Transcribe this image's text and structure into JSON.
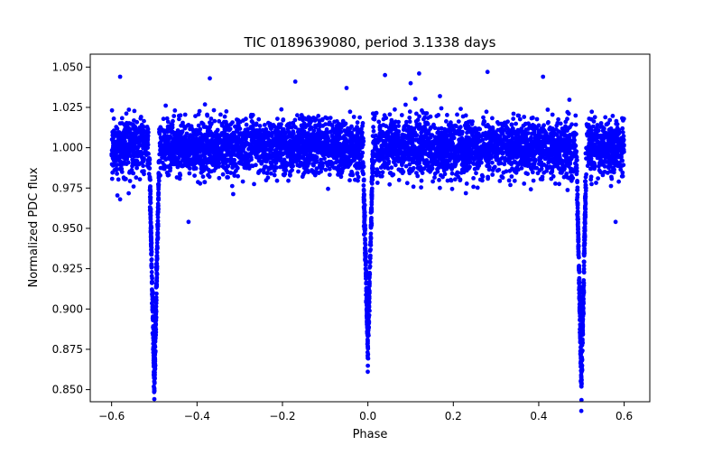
{
  "chart_data": {
    "type": "scatter",
    "title": "TIC 0189639080, period 3.1338 days",
    "xlabel": "Phase",
    "ylabel": "Normalized PDC flux",
    "xlim": [
      -0.65,
      0.66
    ],
    "ylim": [
      0.8425,
      1.058
    ],
    "grid": false,
    "marker_color": "#0000ff",
    "x_ticks": [
      -0.6,
      -0.4,
      -0.2,
      0.0,
      0.2,
      0.4,
      0.6
    ],
    "x_tick_labels": [
      "−0.6",
      "−0.4",
      "−0.2",
      "0.0",
      "0.2",
      "0.4",
      "0.6"
    ],
    "y_ticks": [
      0.85,
      0.875,
      0.9,
      0.925,
      0.95,
      0.975,
      1.0,
      1.025,
      1.05
    ],
    "y_tick_labels": [
      "0.850",
      "0.875",
      "0.900",
      "0.925",
      "0.950",
      "0.975",
      "1.000",
      "1.025",
      "1.050"
    ],
    "series": [
      {
        "marker": "circle",
        "color": "#0000ff",
        "out_of_eclipse_level": 1.0,
        "out_of_eclipse_scatter_range": [
          0.98,
          1.025
        ],
        "primary_eclipses": [
          {
            "phase_center": -0.5,
            "min_flux": 0.851
          },
          {
            "phase_center": 0.5,
            "min_flux": 0.851
          }
        ],
        "secondary_eclipses": [
          {
            "phase_center": 0.0,
            "min_flux": 0.876
          }
        ],
        "outliers": [
          [
            -0.58,
            1.044
          ],
          [
            -0.37,
            1.043
          ],
          [
            0.04,
            1.045
          ],
          [
            0.12,
            1.046
          ],
          [
            0.28,
            1.047
          ],
          [
            0.41,
            1.044
          ],
          [
            -0.58,
            0.968
          ],
          [
            -0.42,
            0.954
          ],
          [
            0.58,
            0.954
          ],
          [
            -0.17,
            1.041
          ],
          [
            0.1,
            1.04
          ],
          [
            -0.05,
            1.037
          ]
        ]
      }
    ]
  }
}
